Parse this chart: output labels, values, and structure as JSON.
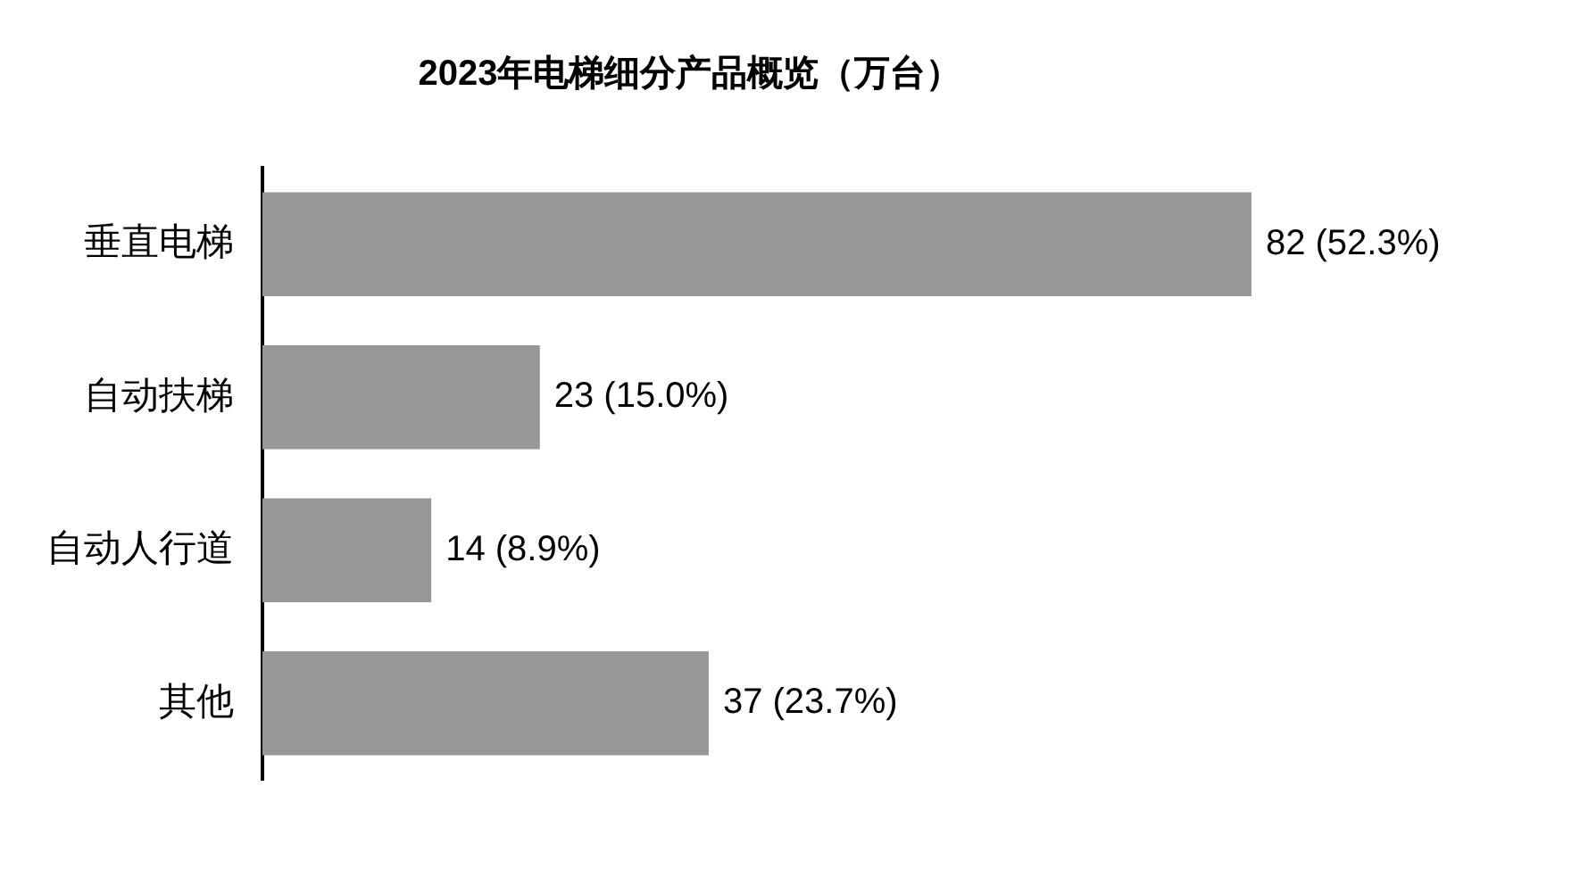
{
  "chart_data": {
    "type": "bar",
    "orientation": "horizontal",
    "title": "2023年电梯细分产品概览（万台）",
    "categories": [
      "垂直电梯",
      "自动扶梯",
      "自动人行道",
      "其他"
    ],
    "values": [
      82,
      23,
      14,
      37
    ],
    "value_labels": [
      "82 (52.3%)",
      "23 (15.0%)",
      "14 (8.9%)",
      "37 (23.7%)"
    ],
    "color": "#979797",
    "tick_labels": "y"
  }
}
